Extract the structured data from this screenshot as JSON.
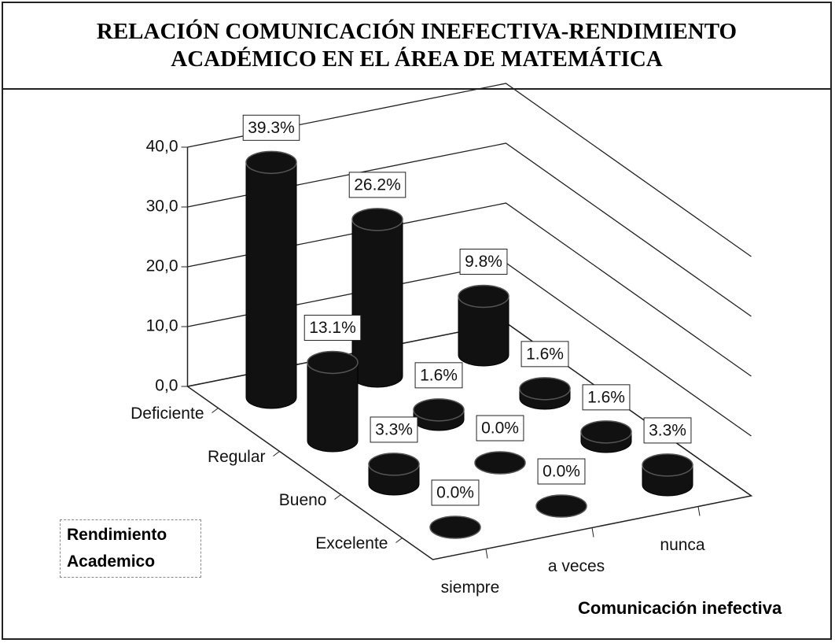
{
  "chart_data": {
    "type": "bar",
    "title": "RELACIÓN COMUNICACIÓN INEFECTIVA-RENDIMIENTO ACADÉMICO EN EL ÁREA DE MATEMÁTICA",
    "categories": [
      "Deficiente",
      "Regular",
      "Bueno",
      "Excelente"
    ],
    "category_axis_label": "Rendimiento Academico",
    "series_axis_label": "Comunicación inefectiva",
    "series": [
      {
        "name": "siempre",
        "color": "#111111",
        "values": [
          39.3,
          13.1,
          3.3,
          0.0
        ],
        "value_labels": [
          "39.3%",
          "13.1%",
          "3.3%",
          "0.0%"
        ]
      },
      {
        "name": "a veces",
        "color": "#111111",
        "values": [
          26.2,
          1.6,
          0.0,
          0.0
        ],
        "value_labels": [
          "26.2%",
          "1.6%",
          "0.0%",
          "0.0%"
        ]
      },
      {
        "name": "nunca",
        "color": "#111111",
        "values": [
          9.8,
          1.6,
          1.6,
          3.3
        ],
        "value_labels": [
          "9.8%",
          "1.6%",
          "1.6%",
          "3.3%"
        ]
      }
    ],
    "ylim": [
      0,
      40
    ],
    "yticks": [
      {
        "value": 0,
        "label": "0,0"
      },
      {
        "value": 10,
        "label": "10,0"
      },
      {
        "value": 20,
        "label": "20,0"
      },
      {
        "value": 30,
        "label": "30,0"
      },
      {
        "value": 40,
        "label": "40,0"
      }
    ],
    "grid": true
  }
}
